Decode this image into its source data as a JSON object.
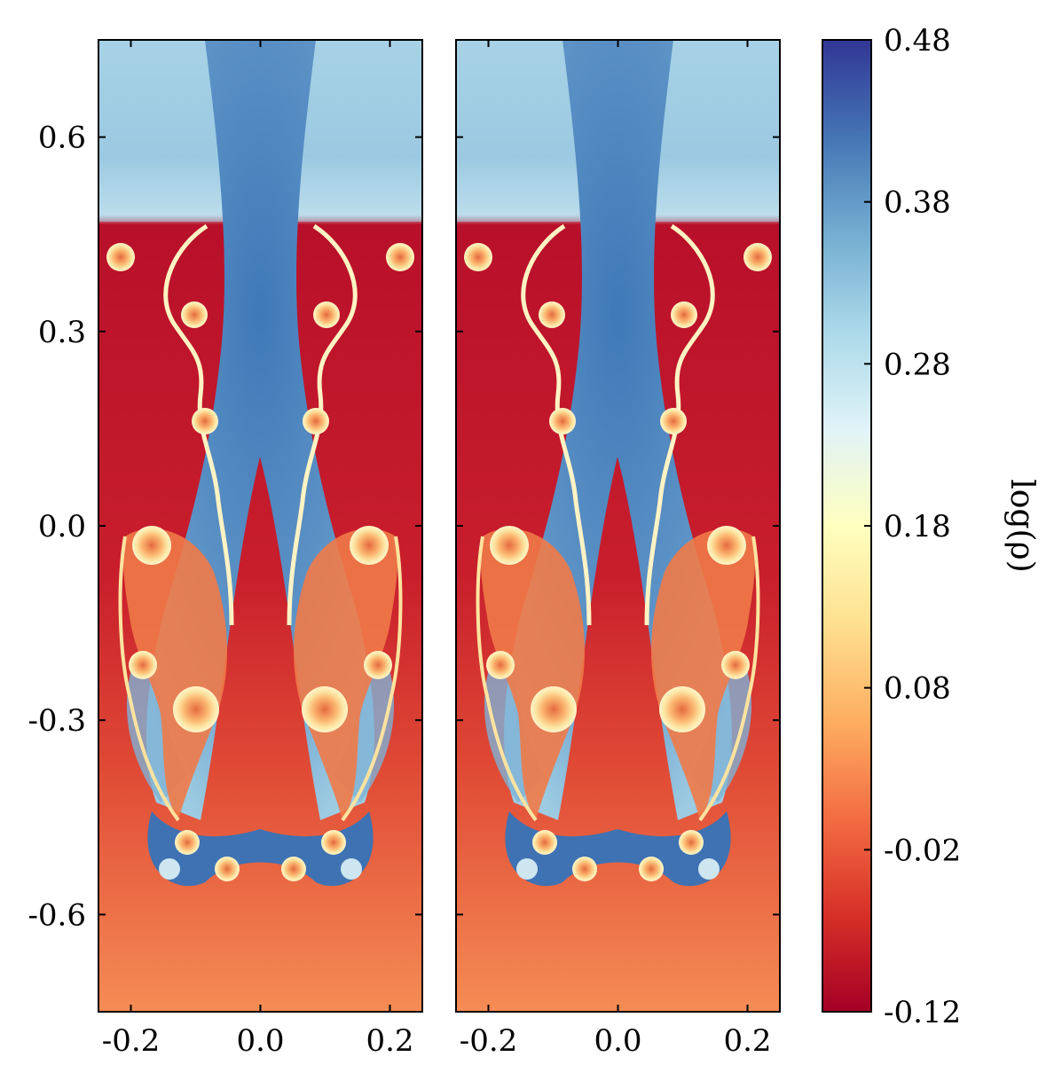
{
  "chart_data": {
    "type": "heatmap",
    "title": "",
    "panels": [
      {
        "name": "left",
        "xlim": [
          -0.25,
          0.25
        ],
        "ylim": [
          -0.75,
          0.75
        ],
        "x_ticks": [
          -0.2,
          0.0,
          0.2
        ],
        "x_tick_labels": [
          "-0.2",
          "0.0",
          "0.2"
        ],
        "y_ticks": [
          0.6,
          0.3,
          0.0,
          -0.3,
          -0.6
        ],
        "y_tick_labels": [
          "0.6",
          "0.3",
          "0.0",
          "-0.3",
          "-0.6"
        ]
      },
      {
        "name": "right",
        "xlim": [
          -0.25,
          0.25
        ],
        "ylim": [
          -0.75,
          0.75
        ],
        "x_ticks": [
          -0.2,
          0.0,
          0.2
        ],
        "x_tick_labels": [
          "-0.2",
          "0.0",
          "0.2"
        ],
        "y_ticks": [
          0.6,
          0.3,
          0.0,
          -0.3,
          -0.6
        ],
        "y_tick_labels": []
      }
    ],
    "colorbar": {
      "label": "log(ρ)",
      "range": [
        -0.12,
        0.48
      ],
      "ticks": [
        0.48,
        0.38,
        0.28,
        0.18,
        0.08,
        -0.02,
        -0.12
      ],
      "tick_labels": [
        "0.48",
        "0.38",
        "0.28",
        "0.18",
        "0.08",
        "-0.02",
        "-0.12"
      ],
      "colormap": "RdYlBu",
      "colors": [
        "#a50026",
        "#d73027",
        "#f46d43",
        "#fdae61",
        "#fee090",
        "#ffffbf",
        "#e0f3f8",
        "#abd9e9",
        "#74add1",
        "#4575b4",
        "#313695"
      ]
    }
  }
}
